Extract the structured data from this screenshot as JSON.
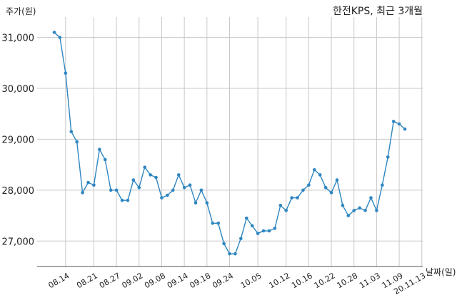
{
  "chart_data": {
    "type": "line",
    "title": "한전KPS, 최근 3개월",
    "ylabel": "주가(원)",
    "xlabel": "날짜(일)",
    "ylim": [
      26500,
      31400
    ],
    "yticks": [
      27000,
      28000,
      29000,
      30000,
      31000
    ],
    "ytick_labels": [
      "27,000",
      "28,000",
      "29,000",
      "30,000",
      "31,000"
    ],
    "grid": true,
    "xtick_labels": [
      "08.14",
      "08.21",
      "08.27",
      "09.02",
      "09.08",
      "09.14",
      "09.18",
      "09.24",
      "10.05",
      "10.12",
      "10.16",
      "10.22",
      "10.28",
      "11.03",
      "11.09",
      "20.11.13"
    ],
    "xtick_indices": [
      2,
      7,
      11,
      15,
      19,
      23,
      27,
      31,
      36,
      41,
      45,
      49,
      53,
      57,
      61,
      65
    ],
    "series": [
      {
        "color": "#2e86c1",
        "values": [
          31100,
          31000,
          30300,
          29150,
          28950,
          27950,
          28150,
          28100,
          28800,
          28600,
          28000,
          28000,
          27800,
          27800,
          28200,
          28050,
          28450,
          28300,
          28250,
          27850,
          27900,
          28000,
          28300,
          28050,
          28100,
          27750,
          28000,
          27750,
          27350,
          27350,
          26950,
          26750,
          26750,
          27050,
          27450,
          27300,
          27150,
          27200,
          27200,
          27250,
          27700,
          27600,
          27850,
          27850,
          28000,
          28100,
          28400,
          28300,
          28050,
          27950,
          28200,
          27700,
          27500,
          27600,
          27650,
          27600,
          27850,
          27600,
          28100,
          28650,
          29350,
          29300,
          29200
        ]
      }
    ]
  }
}
